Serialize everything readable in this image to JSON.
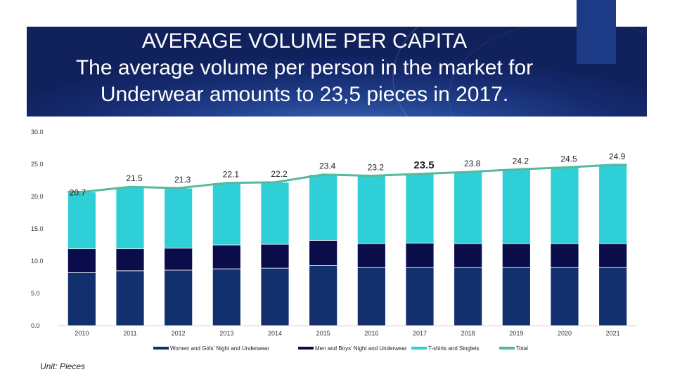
{
  "title": {
    "line1": "AVERAGE VOLUME PER CAPITA",
    "line2": "The average volume per person in the market for",
    "line3": "Underwear amounts to 23,5 pieces in 2017."
  },
  "unit_label": "Unit: Pieces",
  "colors": {
    "banner": "#152a6e",
    "women_girls": "#12306e",
    "men_boys": "#0b0c4a",
    "tshirts": "#2ecfd6",
    "total_line": "#56b89c"
  },
  "chart_data": {
    "type": "bar",
    "stacked": true,
    "categories": [
      "2010",
      "2011",
      "2012",
      "2013",
      "2014",
      "2015",
      "2016",
      "2017",
      "2018",
      "2019",
      "2020",
      "2021"
    ],
    "ylim": [
      0,
      30
    ],
    "yticks": [
      "0.0",
      "5.0",
      "10.0",
      "15.0",
      "20.0",
      "25.0",
      "30.0"
    ],
    "ytick_values": [
      0,
      5,
      10,
      15,
      20,
      25,
      30
    ],
    "series": [
      {
        "name": "Women and Girls' Night and Underwear",
        "color": "#12306e",
        "values": [
          8.2,
          8.5,
          8.6,
          8.8,
          8.9,
          9.3,
          9.0,
          9.0,
          9.0,
          9.0,
          9.0,
          9.0
        ]
      },
      {
        "name": "Men and Boys' Night and Underwear",
        "color": "#0b0c4a",
        "values": [
          3.7,
          3.4,
          3.4,
          3.7,
          3.7,
          3.9,
          3.7,
          3.8,
          3.7,
          3.7,
          3.7,
          3.7
        ]
      },
      {
        "name": "T-shirts and Singlets",
        "color": "#2ecfd6",
        "values": [
          8.8,
          9.6,
          9.3,
          9.6,
          9.6,
          10.2,
          10.5,
          10.7,
          11.1,
          11.5,
          11.8,
          12.2
        ]
      }
    ],
    "line_series": {
      "name": "Total",
      "color": "#56b89c",
      "values": [
        20.7,
        21.5,
        21.3,
        22.1,
        22.2,
        23.4,
        23.2,
        23.5,
        23.8,
        24.2,
        24.5,
        24.9
      ]
    },
    "data_labels": [
      "20.7",
      "21.5",
      "21.3",
      "22.1",
      "22.2",
      "23.4",
      "23.2",
      "23.5",
      "23.8",
      "24.2",
      "24.5",
      "24.9"
    ],
    "highlight_label_index": 7,
    "legend": [
      "Women and Girls' Night and Underwear",
      "Men and Boys' Night and Underwear",
      "T-shirts and Singlets",
      "Total"
    ],
    "legend_position": "bottom"
  }
}
